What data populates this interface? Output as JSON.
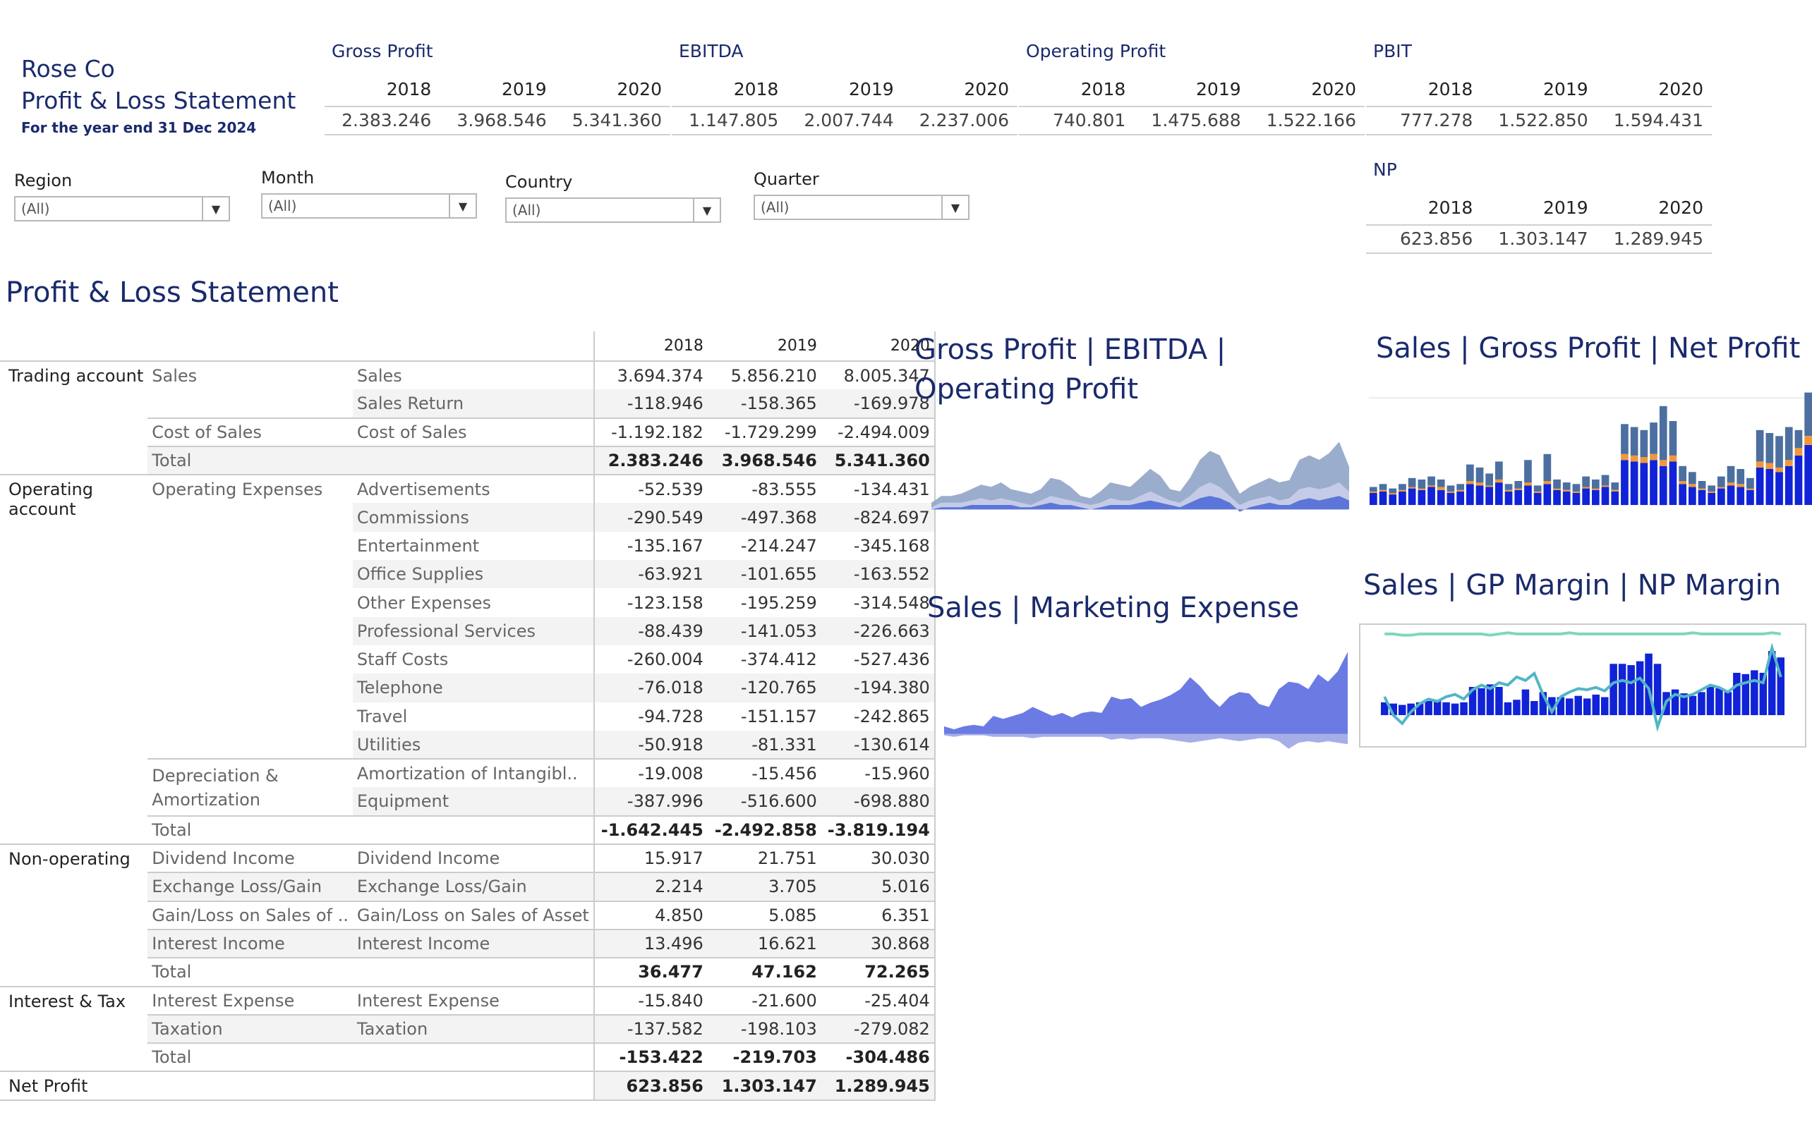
{
  "company": "Rose Co",
  "report_title": "Profit & Loss Statement",
  "subtitle": "For the year end 31 Dec 2024",
  "kpis": [
    {
      "title": "Gross Profit",
      "years": [
        "2018",
        "2019",
        "2020"
      ],
      "values": [
        "2.383.246",
        "3.968.546",
        "5.341.360"
      ]
    },
    {
      "title": "EBITDA",
      "years": [
        "2018",
        "2019",
        "2020"
      ],
      "values": [
        "1.147.805",
        "2.007.744",
        "2.237.006"
      ]
    },
    {
      "title": "Operating Profit",
      "years": [
        "2018",
        "2019",
        "2020"
      ],
      "values": [
        "740.801",
        "1.475.688",
        "1.522.166"
      ]
    },
    {
      "title": "PBIT",
      "years": [
        "2018",
        "2019",
        "2020"
      ],
      "values": [
        "777.278",
        "1.522.850",
        "1.594.431"
      ]
    },
    {
      "title": "NP",
      "years": [
        "2018",
        "2019",
        "2020"
      ],
      "values": [
        "623.856",
        "1.303.147",
        "1.289.945"
      ]
    }
  ],
  "filters": [
    {
      "label": "Region",
      "value": "(All)"
    },
    {
      "label": "Month",
      "value": "(All)"
    },
    {
      "label": "Country",
      "value": "(All)"
    },
    {
      "label": "Quarter",
      "value": "(All)"
    }
  ],
  "table": {
    "title": "Profit & Loss Statement",
    "years": [
      "2018",
      "2019",
      "2020"
    ],
    "groups": {
      "trading": "Trading account",
      "operating_1": "Operating",
      "operating_2": "account",
      "nonop": "Non-operating",
      "interest": "Interest & Tax",
      "net": "Net Profit"
    },
    "subgroups": {
      "sales": "Sales",
      "cos": "Cost of Sales",
      "opex": "Operating Expenses",
      "da_1": "Depreciation &",
      "da_2": "Amortization",
      "div": "Dividend Income",
      "fx": "Exchange Loss/Gain",
      "gl": "Gain/Loss on Sales of ..",
      "ii": "Interest Income",
      "ie": "Interest Expense",
      "tax": "Taxation",
      "total": "Total"
    },
    "rows": [
      {
        "label": "Sales",
        "v": [
          "3.694.374",
          "5.856.210",
          "8.005.347"
        ]
      },
      {
        "label": "Sales Return",
        "v": [
          "-118.946",
          "-158.365",
          "-169.978"
        ]
      },
      {
        "label": "Cost of Sales",
        "v": [
          "-1.192.182",
          "-1.729.299",
          "-2.494.009"
        ]
      },
      {
        "label": "",
        "v": [
          "2.383.246",
          "3.968.546",
          "5.341.360"
        ]
      },
      {
        "label": "Advertisements",
        "v": [
          "-52.539",
          "-83.555",
          "-134.431"
        ]
      },
      {
        "label": "Commissions",
        "v": [
          "-290.549",
          "-497.368",
          "-824.697"
        ]
      },
      {
        "label": "Entertainment",
        "v": [
          "-135.167",
          "-214.247",
          "-345.168"
        ]
      },
      {
        "label": "Office Supplies",
        "v": [
          "-63.921",
          "-101.655",
          "-163.552"
        ]
      },
      {
        "label": "Other Expenses",
        "v": [
          "-123.158",
          "-195.259",
          "-314.548"
        ]
      },
      {
        "label": "Professional Services",
        "v": [
          "-88.439",
          "-141.053",
          "-226.663"
        ]
      },
      {
        "label": "Staff Costs",
        "v": [
          "-260.004",
          "-374.412",
          "-527.436"
        ]
      },
      {
        "label": "Telephone",
        "v": [
          "-76.018",
          "-120.765",
          "-194.380"
        ]
      },
      {
        "label": "Travel",
        "v": [
          "-94.728",
          "-151.157",
          "-242.865"
        ]
      },
      {
        "label": "Utilities",
        "v": [
          "-50.918",
          "-81.331",
          "-130.614"
        ]
      },
      {
        "label": "Amortization of Intangibl..",
        "v": [
          "-19.008",
          "-15.456",
          "-15.960"
        ]
      },
      {
        "label": "Equipment",
        "v": [
          "-387.996",
          "-516.600",
          "-698.880"
        ]
      },
      {
        "label": "",
        "v": [
          "-1.642.445",
          "-2.492.858",
          "-3.819.194"
        ]
      },
      {
        "label": "Dividend Income",
        "v": [
          "15.917",
          "21.751",
          "30.030"
        ]
      },
      {
        "label": "Exchange Loss/Gain",
        "v": [
          "2.214",
          "3.705",
          "5.016"
        ]
      },
      {
        "label": "Gain/Loss on Sales of Asset",
        "v": [
          "4.850",
          "5.085",
          "6.351"
        ]
      },
      {
        "label": "Interest Income",
        "v": [
          "13.496",
          "16.621",
          "30.868"
        ]
      },
      {
        "label": "",
        "v": [
          "36.477",
          "47.162",
          "72.265"
        ]
      },
      {
        "label": "Interest Expense",
        "v": [
          "-15.840",
          "-21.600",
          "-25.404"
        ]
      },
      {
        "label": "Taxation",
        "v": [
          "-137.582",
          "-198.103",
          "-279.082"
        ]
      },
      {
        "label": "",
        "v": [
          "-153.422",
          "-219.703",
          "-304.486"
        ]
      },
      {
        "label": "",
        "v": [
          "623.856",
          "1.303.147",
          "1.289.945"
        ]
      }
    ]
  },
  "chart_data": [
    {
      "type": "area",
      "title": "Gross Profit | EBITDA | Operating Profit",
      "series": [
        {
          "name": "Gross Profit",
          "color": "#8fa4c8",
          "values": [
            3,
            6,
            6,
            7,
            9,
            11,
            10,
            12,
            9,
            8,
            7,
            9,
            14,
            13,
            10,
            6,
            5,
            8,
            12,
            11,
            10,
            14,
            18,
            15,
            9,
            8,
            14,
            22,
            26,
            24,
            15,
            7,
            10,
            12,
            14,
            12,
            13,
            22,
            24,
            22,
            25,
            30,
            19
          ]
        },
        {
          "name": "EBITDA",
          "color": "#c5cbe6",
          "values": [
            1,
            3,
            3,
            3,
            4,
            5,
            4,
            5,
            4,
            3,
            2,
            4,
            6,
            5,
            4,
            3,
            2,
            3,
            5,
            4,
            4,
            6,
            8,
            6,
            4,
            3,
            6,
            10,
            12,
            10,
            6,
            2,
            4,
            5,
            6,
            4,
            5,
            9,
            10,
            9,
            10,
            12,
            8
          ]
        },
        {
          "name": "Operating Profit",
          "color": "#5b76d8",
          "values": [
            0,
            1,
            1,
            1,
            2,
            2,
            2,
            2,
            2,
            1,
            1,
            2,
            3,
            2,
            2,
            1,
            0,
            1,
            2,
            2,
            2,
            3,
            4,
            3,
            2,
            1,
            3,
            5,
            6,
            5,
            3,
            -1,
            1,
            2,
            3,
            2,
            2,
            4,
            5,
            4,
            5,
            6,
            4
          ]
        }
      ]
    },
    {
      "type": "bar",
      "title": "Sales | Gross Profit | Net Profit",
      "series": [
        {
          "name": "Net Profit",
          "color": "#1023d6",
          "values": [
            8,
            9,
            7,
            9,
            11,
            10,
            12,
            10,
            8,
            9,
            14,
            13,
            12,
            15,
            9,
            10,
            13,
            8,
            14,
            10,
            9,
            8,
            11,
            10,
            12,
            9,
            30,
            29,
            28,
            30,
            26,
            29,
            14,
            12,
            10,
            8,
            11,
            13,
            12,
            10,
            25,
            24,
            22,
            26,
            33,
            40
          ]
        },
        {
          "name": "Gross Profit",
          "color": "#f0983a",
          "values": [
            1,
            1,
            1,
            1,
            1,
            1,
            1,
            2,
            1,
            1,
            2,
            2,
            1,
            2,
            1,
            1,
            2,
            1,
            2,
            1,
            1,
            1,
            1,
            1,
            1,
            1,
            4,
            4,
            4,
            4,
            4,
            4,
            2,
            2,
            1,
            1,
            1,
            2,
            2,
            1,
            4,
            4,
            3,
            4,
            5,
            6
          ]
        },
        {
          "name": "Sales",
          "color": "#4c6fa0",
          "values": [
            3,
            4,
            3,
            4,
            6,
            6,
            6,
            5,
            4,
            4,
            11,
            10,
            8,
            12,
            4,
            5,
            15,
            4,
            18,
            6,
            5,
            5,
            7,
            6,
            7,
            5,
            20,
            19,
            18,
            21,
            36,
            23,
            10,
            8,
            5,
            4,
            7,
            11,
            10,
            7,
            21,
            20,
            21,
            22,
            12,
            29
          ]
        }
      ]
    },
    {
      "type": "area",
      "title": "Sales | Marketing Expense",
      "series": [
        {
          "name": "Sales",
          "color": "#5b6de0",
          "values": [
            5,
            3,
            5,
            6,
            5,
            12,
            10,
            12,
            14,
            18,
            15,
            12,
            14,
            11,
            14,
            15,
            14,
            25,
            23,
            24,
            18,
            21,
            23,
            26,
            30,
            38,
            32,
            24,
            18,
            25,
            28,
            27,
            20,
            18,
            30,
            35,
            34,
            30,
            40,
            35,
            42,
            55
          ]
        },
        {
          "name": "Marketing Expense",
          "color": "#a6aee8",
          "values": [
            -1,
            -2,
            -1,
            -1,
            -1,
            -2,
            -2,
            -2,
            -2,
            -3,
            -2,
            -2,
            -2,
            -2,
            -2,
            -2,
            -2,
            -4,
            -3,
            -4,
            -3,
            -3,
            -3,
            -4,
            -5,
            -6,
            -5,
            -4,
            -3,
            -4,
            -5,
            -4,
            -3,
            -3,
            -5,
            -10,
            -6,
            -5,
            -6,
            -5,
            -6,
            -7
          ]
        }
      ]
    },
    {
      "type": "bar",
      "title": "Sales | GP Margin | NP Margin",
      "series": [
        {
          "name": "Sales",
          "color": "#1023d6",
          "values": [
            10,
            9,
            8,
            9,
            10,
            11,
            12,
            10,
            9,
            10,
            22,
            21,
            24,
            22,
            10,
            12,
            20,
            11,
            18,
            14,
            14,
            13,
            15,
            13,
            16,
            14,
            40,
            40,
            39,
            42,
            48,
            40,
            18,
            20,
            17,
            15,
            18,
            22,
            21,
            18,
            33,
            32,
            35,
            33,
            50,
            45
          ]
        },
        {
          "name": "GP Margin",
          "color": "#7fd8b8",
          "values": [
            62,
            62,
            61,
            61,
            62,
            62,
            62,
            62,
            62,
            62,
            62,
            62,
            61,
            62,
            63,
            62,
            62,
            62,
            62,
            62,
            62,
            63,
            62,
            62,
            62,
            62,
            62,
            62,
            62,
            62,
            62,
            62,
            62,
            62,
            62,
            63,
            62,
            62,
            62,
            62,
            62,
            62,
            62,
            62,
            63,
            62
          ]
        },
        {
          "name": "NP Margin",
          "color": "#52b6c6",
          "values": [
            8,
            -8,
            -15,
            -5,
            2,
            6,
            4,
            8,
            10,
            6,
            14,
            18,
            15,
            20,
            18,
            25,
            22,
            28,
            10,
            -5,
            8,
            12,
            15,
            14,
            16,
            13,
            20,
            22,
            20,
            24,
            15,
            -18,
            4,
            10,
            8,
            10,
            14,
            18,
            16,
            12,
            18,
            20,
            22,
            20,
            50,
            25
          ]
        }
      ]
    }
  ]
}
